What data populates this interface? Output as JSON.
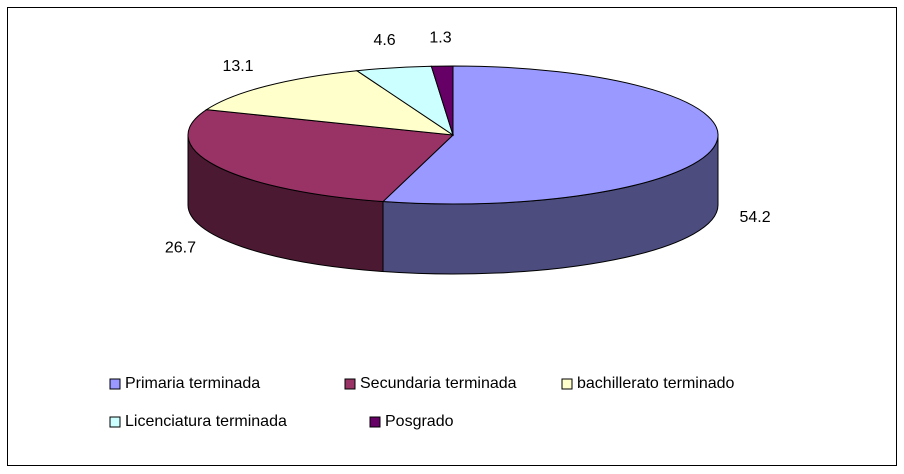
{
  "chart_data": {
    "type": "pie",
    "categories": [
      "Primaria terminada",
      "Secundaria terminada",
      "bachillerato terminado",
      "Licenciatura terminada",
      "Posgrado"
    ],
    "values": [
      54.2,
      26.7,
      13.1,
      4.6,
      1.3
    ],
    "colors": [
      "#9999ff",
      "#993366",
      "#ffffcc",
      "#ccffff",
      "#660066"
    ],
    "legend": "bottom"
  }
}
